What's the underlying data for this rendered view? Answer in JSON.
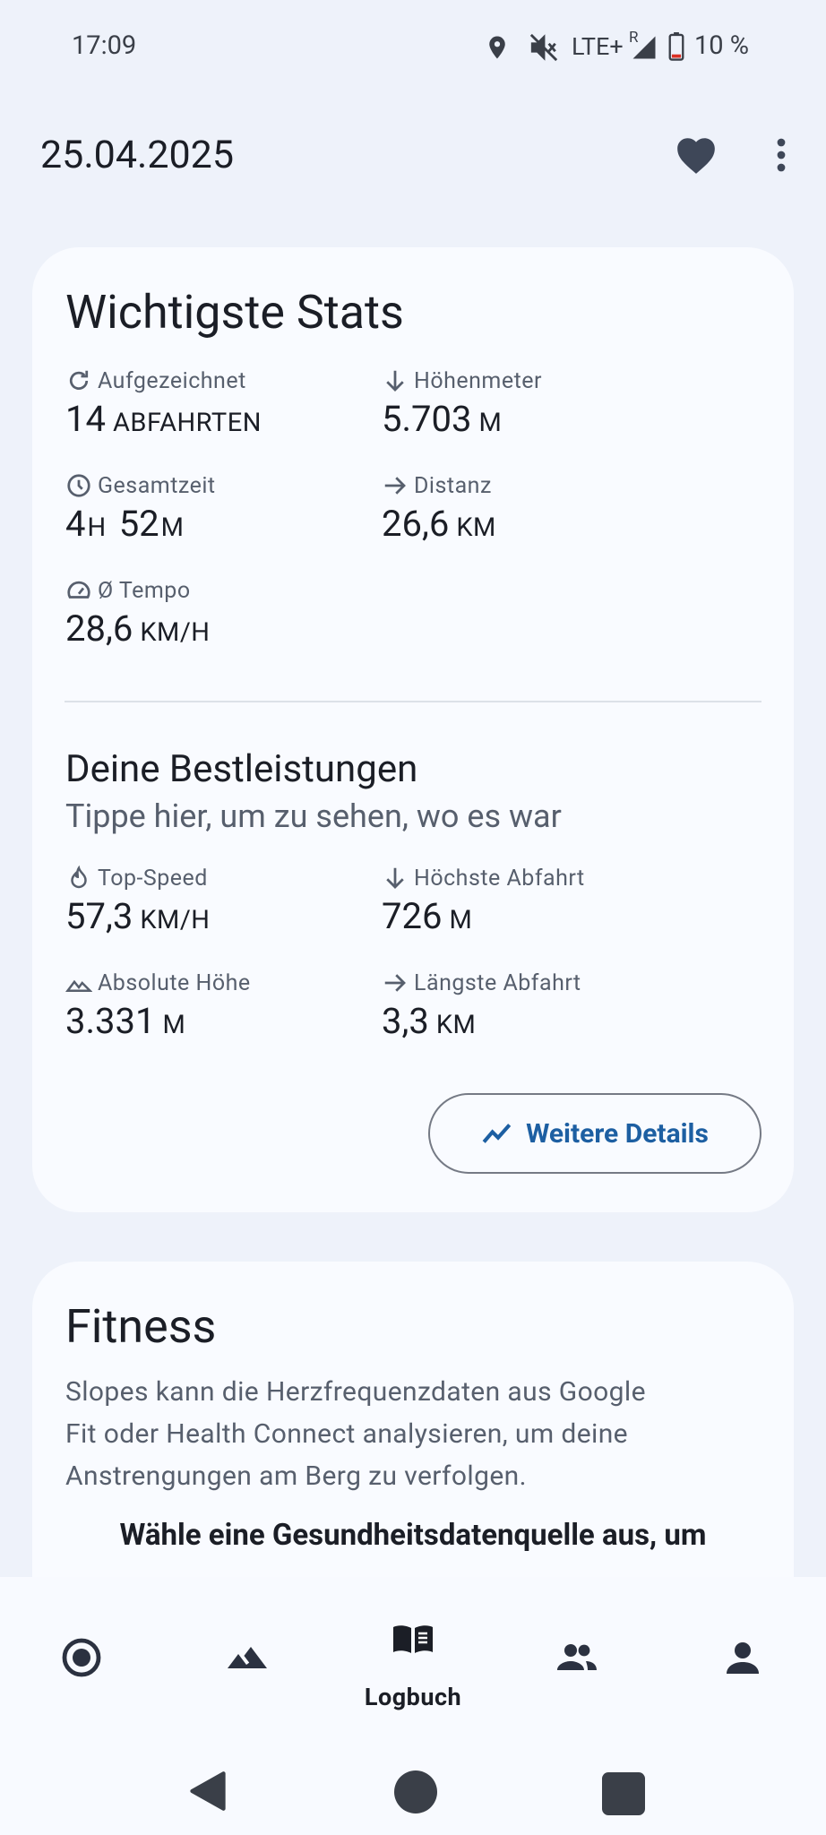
{
  "status_bar": {
    "time": "17:09",
    "network": "LTE+",
    "roaming": "R",
    "battery": "10 %"
  },
  "header": {
    "date": "25.04.2025"
  },
  "stats_card": {
    "title": "Wichtigste Stats",
    "stats": [
      {
        "label": "Aufgezeichnet",
        "value": "14",
        "unit": "ABFAHRTEN"
      },
      {
        "label": "Höhenmeter",
        "value": "5.703",
        "unit": "M"
      },
      {
        "label": "Gesamtzeit",
        "value": "4",
        "unit": "H",
        "value2": "52",
        "unit2": "M"
      },
      {
        "label": "Distanz",
        "value": "26,6",
        "unit": "KM"
      },
      {
        "label": "Ø Tempo",
        "value": "28,6",
        "unit": "KM/H"
      }
    ]
  },
  "best_card": {
    "title": "Deine Bestleistungen",
    "subtitle": "Tippe hier, um zu sehen, wo es war",
    "stats": [
      {
        "label": "Top-Speed",
        "value": "57,3",
        "unit": "KM/H"
      },
      {
        "label": "Höchste Abfahrt",
        "value": "726",
        "unit": "M"
      },
      {
        "label": "Absolute Höhe",
        "value": "3.331",
        "unit": "M"
      },
      {
        "label": "Längste Abfahrt",
        "value": "3,3",
        "unit": "KM"
      }
    ],
    "button": "Weitere Details"
  },
  "fitness_card": {
    "title": "Fitness",
    "text": [
      "Slopes kann die Herzfrequenzdaten aus Google",
      "Fit oder Health Connect analysieren, um deine",
      "Anstrengungen am Berg zu verfolgen."
    ],
    "prompt": "Wähle eine Gesundheitsdatenquelle aus, um"
  },
  "bottom_nav": {
    "active": "Logbuch"
  }
}
